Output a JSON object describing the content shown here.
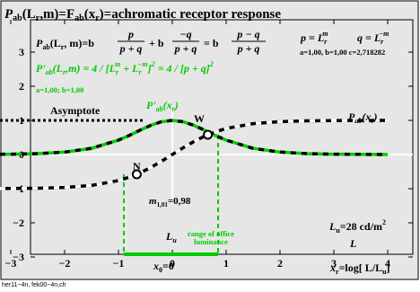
{
  "chart_data": {
    "type": "line",
    "title": {
      "main": "P",
      "main_sub": "ab",
      "arg1": "(L",
      "arg1_sub": "r",
      "mid": ",m)=F",
      "mid_sub": "ab",
      "arg2": "(x",
      "arg2_sub": "r",
      "rest": ")=achromatic receptor response"
    },
    "formulas": {
      "f1_lhs_main": "P",
      "f1_lhs_sub": "ab",
      "f1_lhs_arg": "(L",
      "f1_lhs_arg_sub": "r",
      "f1_lhs_rest": ", m)=b",
      "frac1_num": "p",
      "frac1_den": "p + q",
      "plus_b": "+ b",
      "frac2_num": "−q",
      "frac2_den": "p + q",
      "eq_b": "= b",
      "frac3_num": "p  −  q",
      "frac3_den": "p + q",
      "p_def_lhs": "p = L",
      "p_def_sub": "r",
      "p_def_sup": "m",
      "q_def_lhs": "q = L",
      "q_def_sub": "r",
      "q_def_sup": "−m",
      "params": "a=1,00, b=1,00 c=2,718282",
      "deriv_text": "P'",
      "deriv_sub": "ab",
      "deriv_arg": "(L",
      "deriv_arg_sub": "r",
      "deriv_rest_a": ",m) = 4 / [L",
      "deriv_rest_sub": "r",
      "deriv_rest_sup": "m",
      "deriv_rest_b": " + L",
      "deriv_rest_sub2": "r",
      "deriv_rest_sup2": "−m",
      "deriv_rest_c": "]",
      "deriv_rest_sup3": "2",
      "deriv_rest_d": " = 4 / [p + q]",
      "deriv_rest_sup4": "2",
      "params2": "a=1,00; b=1,00"
    },
    "annotations": {
      "asymptote": "Asymptote",
      "deriv_label": "P'",
      "deriv_label_sub": "ab",
      "deriv_label_arg": "(x",
      "deriv_label_arg_sub": "r",
      "deriv_label_end": ")",
      "curve_label": "P",
      "curve_label_sub": "ab",
      "curve_label_arg": "(x",
      "curve_label_arg_sub": "r",
      "curve_label_end": ")",
      "point_W": "W",
      "point_N": "N",
      "m_label": "m",
      "m_sub": "1,01",
      "m_value": "=0,98",
      "Lu_label": "L",
      "Lu_sub": "u",
      "office_line1": "range of office",
      "office_line2": "luminance",
      "Lu_value_main": "L",
      "Lu_value_sub": "u",
      "Lu_value_rest": "=28 cd/m",
      "Lu_value_sup": "2",
      "L_label": "L",
      "x0_label": "x",
      "x0_sub": "0",
      "x0_rest": "=0"
    },
    "x_axis": {
      "label_main": "x",
      "label_sub": "r",
      "label_rest": "=log[ L/L",
      "label_sub2": "u",
      "label_end": "]",
      "ticks": [
        -4,
        -3,
        -2,
        -1,
        0,
        1,
        2,
        3,
        4
      ],
      "tick_labels": [
        "−4",
        "−3",
        "−2",
        "−1",
        "0",
        "1",
        "2",
        "3",
        "4"
      ],
      "range": [
        -4.2,
        4.6
      ]
    },
    "y_axis": {
      "ticks": [
        -3,
        -2,
        -1,
        0,
        1,
        2,
        3
      ],
      "tick_labels": [
        "−3",
        "−2",
        "−1",
        "0",
        "1",
        "2",
        "3"
      ],
      "range": [
        -3.25,
        3.6
      ]
    },
    "series": [
      {
        "role": "response",
        "x": [
          -4.0,
          -3.5,
          -3.0,
          -2.5,
          -2.0,
          -1.5,
          -1.0,
          -0.8,
          -0.6,
          -0.4,
          -0.2,
          0.0,
          0.2,
          0.4,
          0.6,
          0.8,
          1.0,
          1.5,
          2.0,
          2.5,
          3.0,
          3.5,
          4.0
        ],
        "y": [
          -0.999,
          -0.998,
          -0.995,
          -0.987,
          -0.964,
          -0.905,
          -0.762,
          -0.664,
          -0.537,
          -0.38,
          -0.197,
          0.0,
          0.197,
          0.38,
          0.537,
          0.664,
          0.762,
          0.905,
          0.964,
          0.987,
          0.995,
          0.998,
          0.999
        ]
      },
      {
        "role": "derivative",
        "x": [
          -4.0,
          -3.5,
          -3.0,
          -2.5,
          -2.0,
          -1.5,
          -1.0,
          -0.8,
          -0.6,
          -0.4,
          -0.2,
          0.0,
          0.2,
          0.4,
          0.6,
          0.8,
          1.0,
          1.5,
          2.0,
          2.5,
          3.0,
          3.5,
          4.0
        ],
        "y": [
          0.001,
          0.004,
          0.01,
          0.027,
          0.071,
          0.181,
          0.42,
          0.559,
          0.712,
          0.856,
          0.961,
          1.0,
          0.961,
          0.856,
          0.712,
          0.559,
          0.42,
          0.181,
          0.071,
          0.027,
          0.01,
          0.004,
          0.001
        ]
      }
    ],
    "markers": {
      "W": [
        0.66,
        0.58
      ],
      "N": [
        -0.66,
        -0.58
      ]
    },
    "office_range": [
      -0.9,
      0.85
    ],
    "grid": false,
    "colors": {
      "background": "#e6e6e6",
      "green": "#00cc00",
      "black": "#000000",
      "white": "#ffffff"
    }
  },
  "footer": "her11−4n, fek00−4n,ch"
}
